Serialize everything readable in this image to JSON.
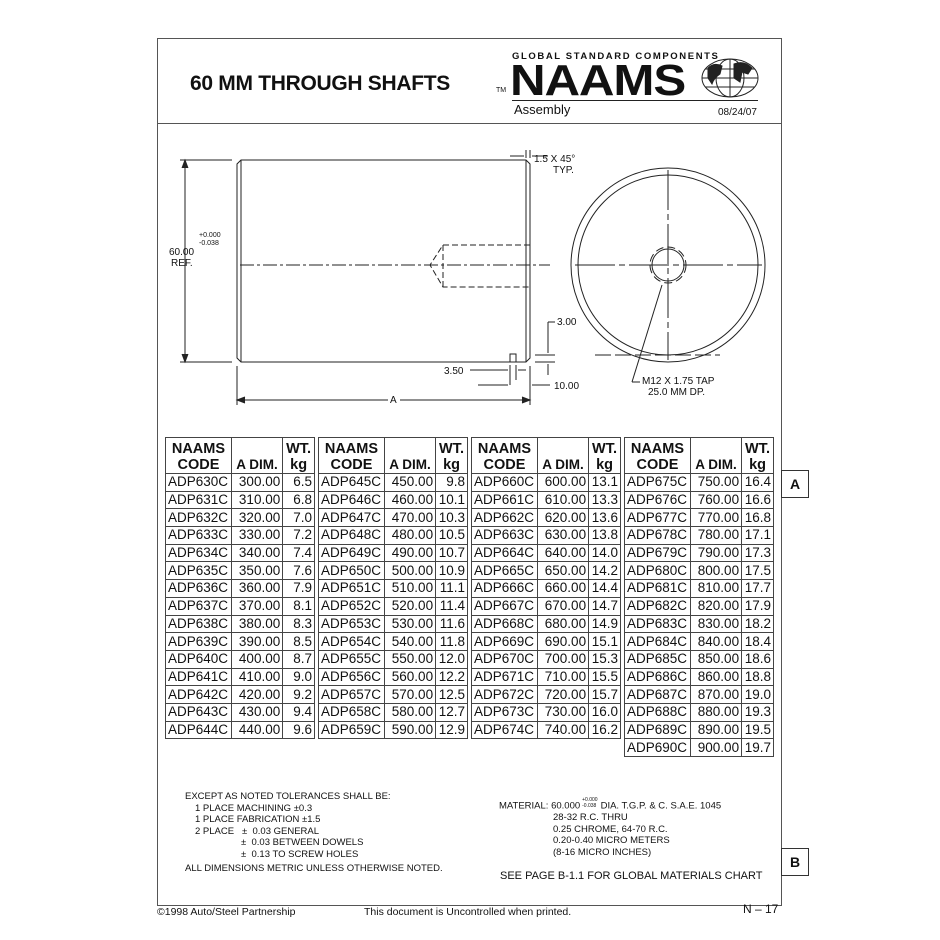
{
  "header": {
    "title": "60 MM THROUGH SHAFTS",
    "tagline": "GLOBAL STANDARD COMPONENTS",
    "logo": "NAAMS",
    "tm": "TM",
    "subtitle": "Assembly",
    "date": "08/24/07"
  },
  "drawing": {
    "chamfer": "1.5 X 45°",
    "chamfer_note": "TYP.",
    "diameter": "60.00",
    "diameter_ref": "REF.",
    "tol_plus": "+0.000",
    "tol_minus": "-0.038",
    "dim_3": "3.00",
    "dim_350": "3.50",
    "dim_10": "10.00",
    "dim_a": "A",
    "tap": "M12 X 1.75 TAP",
    "tap_depth": "25.0 MM DP."
  },
  "table": {
    "headers": {
      "code1": "NAAMS",
      "code2": "CODE",
      "adim": "A DIM.",
      "wt1": "WT.",
      "wt2": "kg"
    },
    "groups": [
      [
        [
          "ADP630C",
          "300.00",
          "6.5"
        ],
        [
          "ADP631C",
          "310.00",
          "6.8"
        ],
        [
          "ADP632C",
          "320.00",
          "7.0"
        ],
        [
          "ADP633C",
          "330.00",
          "7.2"
        ],
        [
          "ADP634C",
          "340.00",
          "7.4"
        ],
        [
          "ADP635C",
          "350.00",
          "7.6"
        ],
        [
          "ADP636C",
          "360.00",
          "7.9"
        ],
        [
          "ADP637C",
          "370.00",
          "8.1"
        ],
        [
          "ADP638C",
          "380.00",
          "8.3"
        ],
        [
          "ADP639C",
          "390.00",
          "8.5"
        ],
        [
          "ADP640C",
          "400.00",
          "8.7"
        ],
        [
          "ADP641C",
          "410.00",
          "9.0"
        ],
        [
          "ADP642C",
          "420.00",
          "9.2"
        ],
        [
          "ADP643C",
          "430.00",
          "9.4"
        ],
        [
          "ADP644C",
          "440.00",
          "9.6"
        ]
      ],
      [
        [
          "ADP645C",
          "450.00",
          "9.8"
        ],
        [
          "ADP646C",
          "460.00",
          "10.1"
        ],
        [
          "ADP647C",
          "470.00",
          "10.3"
        ],
        [
          "ADP648C",
          "480.00",
          "10.5"
        ],
        [
          "ADP649C",
          "490.00",
          "10.7"
        ],
        [
          "ADP650C",
          "500.00",
          "10.9"
        ],
        [
          "ADP651C",
          "510.00",
          "11.1"
        ],
        [
          "ADP652C",
          "520.00",
          "11.4"
        ],
        [
          "ADP653C",
          "530.00",
          "11.6"
        ],
        [
          "ADP654C",
          "540.00",
          "11.8"
        ],
        [
          "ADP655C",
          "550.00",
          "12.0"
        ],
        [
          "ADP656C",
          "560.00",
          "12.2"
        ],
        [
          "ADP657C",
          "570.00",
          "12.5"
        ],
        [
          "ADP658C",
          "580.00",
          "12.7"
        ],
        [
          "ADP659C",
          "590.00",
          "12.9"
        ]
      ],
      [
        [
          "ADP660C",
          "600.00",
          "13.1"
        ],
        [
          "ADP661C",
          "610.00",
          "13.3"
        ],
        [
          "ADP662C",
          "620.00",
          "13.6"
        ],
        [
          "ADP663C",
          "630.00",
          "13.8"
        ],
        [
          "ADP664C",
          "640.00",
          "14.0"
        ],
        [
          "ADP665C",
          "650.00",
          "14.2"
        ],
        [
          "ADP666C",
          "660.00",
          "14.4"
        ],
        [
          "ADP667C",
          "670.00",
          "14.7"
        ],
        [
          "ADP668C",
          "680.00",
          "14.9"
        ],
        [
          "ADP669C",
          "690.00",
          "15.1"
        ],
        [
          "ADP670C",
          "700.00",
          "15.3"
        ],
        [
          "ADP671C",
          "710.00",
          "15.5"
        ],
        [
          "ADP672C",
          "720.00",
          "15.7"
        ],
        [
          "ADP673C",
          "730.00",
          "16.0"
        ],
        [
          "ADP674C",
          "740.00",
          "16.2"
        ]
      ],
      [
        [
          "ADP675C",
          "750.00",
          "16.4"
        ],
        [
          "ADP676C",
          "760.00",
          "16.6"
        ],
        [
          "ADP677C",
          "770.00",
          "16.8"
        ],
        [
          "ADP678C",
          "780.00",
          "17.1"
        ],
        [
          "ADP679C",
          "790.00",
          "17.3"
        ],
        [
          "ADP680C",
          "800.00",
          "17.5"
        ],
        [
          "ADP681C",
          "810.00",
          "17.7"
        ],
        [
          "ADP682C",
          "820.00",
          "17.9"
        ],
        [
          "ADP683C",
          "830.00",
          "18.2"
        ],
        [
          "ADP684C",
          "840.00",
          "18.4"
        ],
        [
          "ADP685C",
          "850.00",
          "18.6"
        ],
        [
          "ADP686C",
          "860.00",
          "18.8"
        ],
        [
          "ADP687C",
          "870.00",
          "19.0"
        ],
        [
          "ADP688C",
          "880.00",
          "19.3"
        ],
        [
          "ADP689C",
          "890.00",
          "19.5"
        ],
        [
          "ADP690C",
          "900.00",
          "19.7"
        ]
      ]
    ]
  },
  "badges": {
    "a": "A",
    "b": "B"
  },
  "tolerances": [
    "EXCEPT AS NOTED TOLERANCES SHALL BE:",
    "1 PLACE MACHINING ±0.3",
    "1 PLACE FABRICATION ±1.5",
    "2 PLACE   ±  0.03 GENERAL",
    "±  0.03 BETWEEN DOWELS",
    "±  0.13 TO SCREW HOLES",
    "ALL DIMENSIONS METRIC UNLESS OTHERWISE NOTED."
  ],
  "material": {
    "label": "MATERIAL: 60.000",
    "tol_plus": "+0.000",
    "tol_minus": "-0.038",
    "line1": "DIA. T.G.P. & C.  S.A.E. 1045",
    "lines": [
      "28-32 R.C. THRU",
      "0.25 CHROME, 64-70 R.C.",
      "0.20-0.40 MICRO METERS",
      "(8-16 MICRO INCHES)"
    ],
    "see": "SEE PAGE B-1.1 FOR GLOBAL MATERIALS CHART"
  },
  "footer": {
    "copyright": "©1998 Auto/Steel Partnership",
    "notice": "This document is Uncontrolled when printed.",
    "page": "N – 17"
  }
}
